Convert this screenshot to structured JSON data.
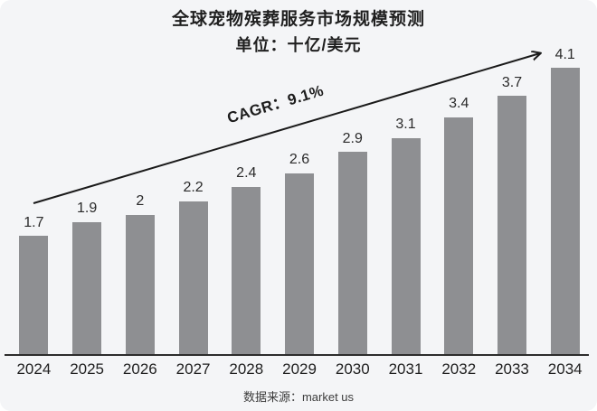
{
  "page": {
    "background": "#ffffff",
    "card_background": "#f4f5f7"
  },
  "header": {
    "title": "全球宠物殡葬服务市场规模预测",
    "subtitle": "单位：十亿/美元"
  },
  "annotation": {
    "cagr": "CAGR：9.1%"
  },
  "footer": {
    "source": "数据来源：market us"
  },
  "chart_data": {
    "type": "bar",
    "title": "全球宠物殡葬服务市场规模预测",
    "subtitle": "单位：十亿/美元",
    "categories": [
      "2024",
      "2025",
      "2026",
      "2027",
      "2028",
      "2029",
      "2030",
      "2031",
      "2032",
      "2033",
      "2034"
    ],
    "values": [
      1.7,
      1.9,
      2.0,
      2.2,
      2.4,
      2.6,
      2.9,
      3.1,
      3.4,
      3.7,
      4.1
    ],
    "value_labels": [
      "1.7",
      "1.9",
      "2",
      "2.2",
      "2.4",
      "2.6",
      "2.9",
      "3.1",
      "3.4",
      "3.7",
      "4.1"
    ],
    "annotation": "CAGR：9.1%",
    "source": "数据来源：market us",
    "xlabel": "",
    "ylabel": "单位：十亿/美元",
    "ylim": [
      0,
      4.5
    ],
    "grid": false,
    "legend": false,
    "bar_color": "#8e8f92",
    "axis_color": "#2c2c2c",
    "arrow_color": "#1a1a1a",
    "text_color": "#222222"
  }
}
